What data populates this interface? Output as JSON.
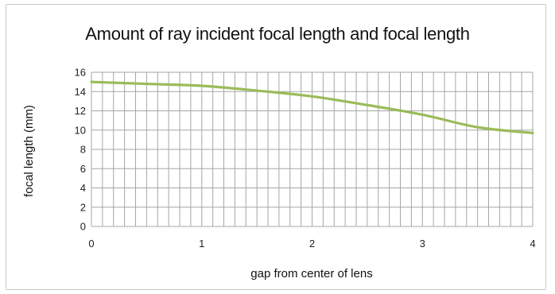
{
  "chart_data": {
    "type": "line",
    "title": "Amount of ray incident focal length and focal length",
    "xlabel": "gap from center of lens",
    "ylabel": "focal length (mm)",
    "xlim": [
      0,
      4
    ],
    "ylim": [
      0,
      16
    ],
    "x_ticks": [
      0,
      1,
      2,
      3,
      4
    ],
    "y_ticks": [
      0,
      2,
      4,
      6,
      8,
      10,
      12,
      14,
      16
    ],
    "grid": true,
    "legend": "none",
    "series": [
      {
        "color": "#9bbb59",
        "x": [
          0,
          0.5,
          1.0,
          1.5,
          2.0,
          2.5,
          3.0,
          3.5,
          4.0
        ],
        "y": [
          15.0,
          14.8,
          14.6,
          14.1,
          13.5,
          12.6,
          11.6,
          10.3,
          9.7
        ]
      }
    ]
  }
}
